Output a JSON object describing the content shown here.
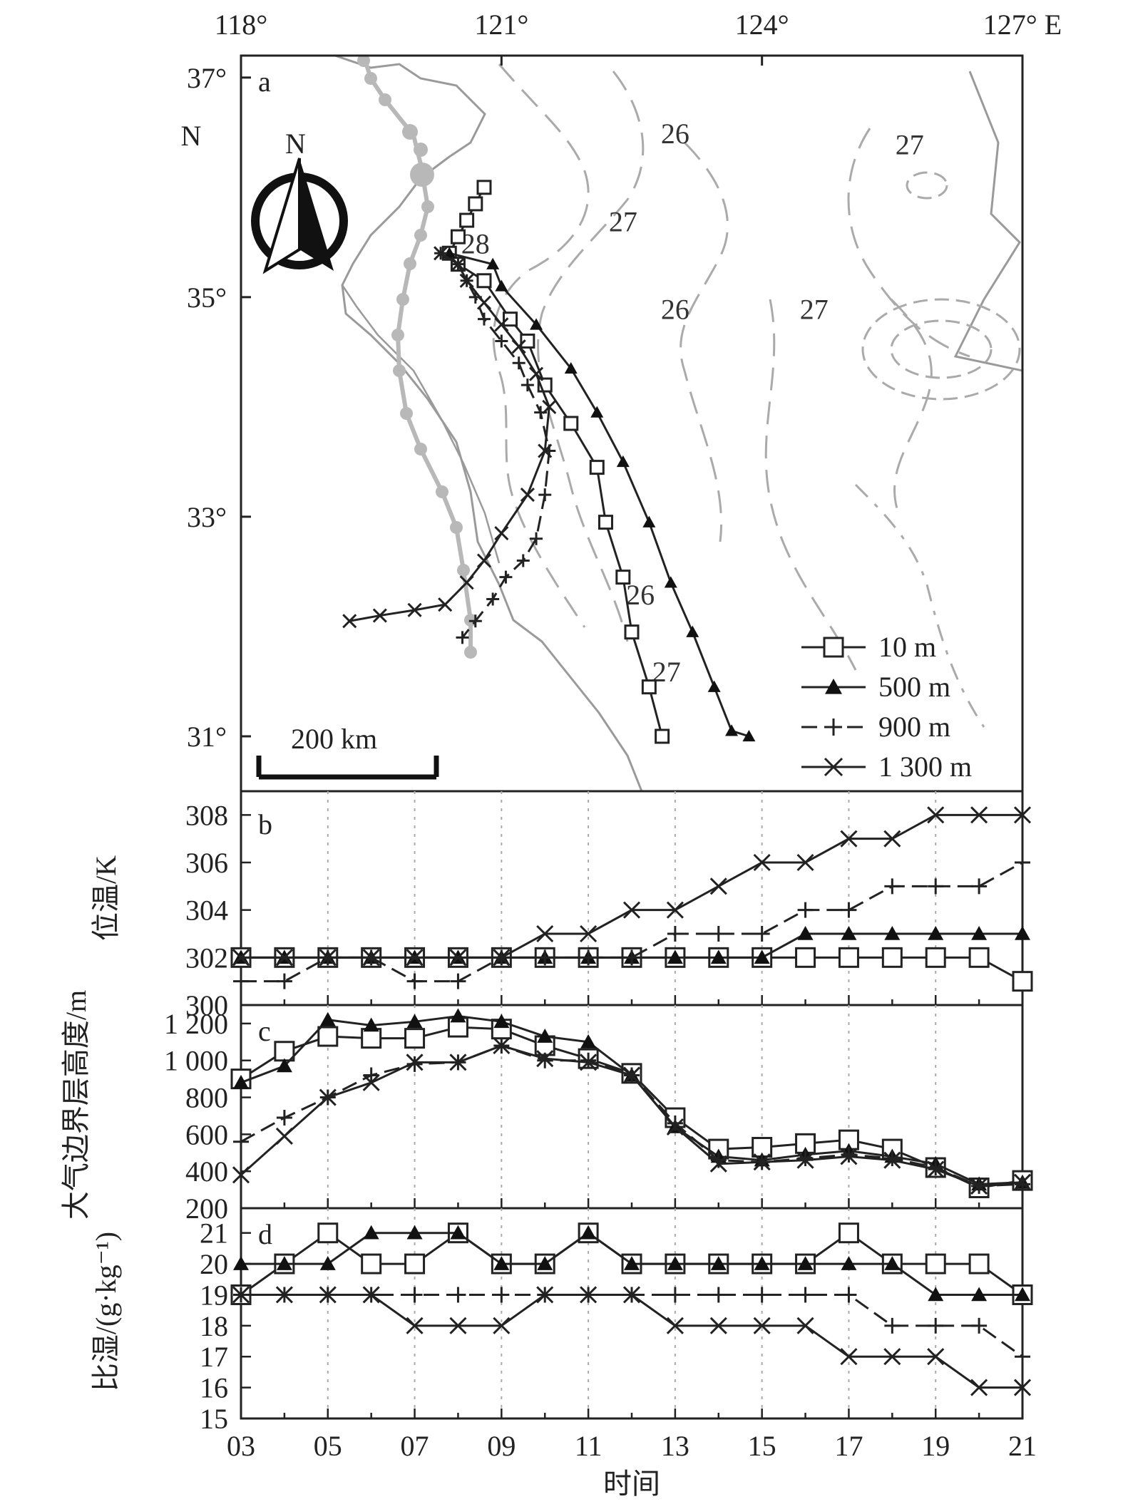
{
  "chart_data": [
    {
      "panel": "a",
      "type": "line",
      "top_axis": {
        "ticks": [
          "118°",
          "121°",
          "124°",
          "127° E"
        ],
        "values": [
          118,
          121,
          124,
          127
        ]
      },
      "left_axis": {
        "ticks": [
          "37°",
          "35°",
          "33°",
          "31°"
        ],
        "values": [
          37,
          35,
          33,
          31
        ],
        "unit": "N"
      },
      "xlim": [
        118,
        127
      ],
      "ylim": [
        30.5,
        37.2
      ],
      "north_label": "N",
      "scale_bar": "200 km",
      "isotherm_labels": [
        {
          "text": "26",
          "lon": 123.0,
          "lat": 36.4
        },
        {
          "text": "27",
          "lon": 125.7,
          "lat": 36.3
        },
        {
          "text": "27",
          "lon": 122.4,
          "lat": 35.6
        },
        {
          "text": "28",
          "lon": 120.7,
          "lat": 35.4
        },
        {
          "text": "26",
          "lon": 123.0,
          "lat": 34.8
        },
        {
          "text": "27",
          "lon": 124.6,
          "lat": 34.8
        },
        {
          "text": "26",
          "lon": 122.6,
          "lat": 32.2
        },
        {
          "text": "27",
          "lon": 122.9,
          "lat": 31.5
        }
      ],
      "series": [
        {
          "name": "10 m",
          "marker": "square",
          "lon": [
            120.8,
            120.7,
            120.6,
            120.5,
            120.4,
            120.5,
            120.8,
            121.1,
            121.3,
            121.5,
            121.8,
            122.1,
            122.2,
            122.4,
            122.5,
            122.7,
            122.85
          ],
          "lat": [
            36.0,
            35.85,
            35.7,
            35.55,
            35.4,
            35.3,
            35.15,
            34.8,
            34.6,
            34.2,
            33.85,
            33.45,
            32.95,
            32.45,
            31.95,
            31.45,
            31.0
          ]
        },
        {
          "name": "500 m",
          "marker": "triangle",
          "lon": [
            120.4,
            120.9,
            121.0,
            121.4,
            121.8,
            122.1,
            122.4,
            122.7,
            122.95,
            123.2,
            123.45,
            123.65,
            123.85
          ],
          "lat": [
            35.4,
            35.3,
            35.1,
            34.75,
            34.35,
            33.95,
            33.5,
            32.95,
            32.4,
            31.95,
            31.45,
            31.05,
            31.0
          ]
        },
        {
          "name": "900 m",
          "marker": "plus",
          "lon": [
            120.3,
            120.5,
            120.6,
            120.7,
            120.8,
            121.0,
            121.2,
            121.3,
            121.45,
            121.55,
            121.5,
            121.4,
            121.25,
            121.05,
            120.9,
            120.7,
            120.55
          ],
          "lat": [
            35.4,
            35.3,
            35.15,
            35.0,
            34.8,
            34.6,
            34.4,
            34.2,
            33.95,
            33.6,
            33.2,
            32.8,
            32.6,
            32.45,
            32.25,
            32.05,
            31.9
          ]
        },
        {
          "name": "1 300 m",
          "marker": "x",
          "lon": [
            120.3,
            120.5,
            120.6,
            120.8,
            121.0,
            121.2,
            121.4,
            121.55,
            121.5,
            121.3,
            121.0,
            120.8,
            120.6,
            120.35,
            120.0,
            119.6,
            119.25
          ],
          "lat": [
            35.4,
            35.3,
            35.15,
            34.95,
            34.75,
            34.55,
            34.3,
            34.0,
            33.6,
            33.2,
            32.85,
            32.6,
            32.4,
            32.2,
            32.15,
            32.1,
            32.05
          ]
        }
      ],
      "legend_placement": "bottom-right"
    },
    {
      "panel": "b",
      "type": "line",
      "ylabel": "位温/K",
      "ylim": [
        300,
        309
      ],
      "yticks": [
        300,
        302,
        304,
        306,
        308
      ],
      "x": [
        3,
        4,
        5,
        6,
        7,
        8,
        9,
        10,
        11,
        12,
        13,
        14,
        15,
        16,
        17,
        18,
        19,
        20,
        21
      ],
      "series": [
        {
          "name": "10 m",
          "marker": "square",
          "values": [
            302,
            302,
            302,
            302,
            302,
            302,
            302,
            302,
            302,
            302,
            302,
            302,
            302,
            302,
            302,
            302,
            302,
            302,
            301
          ]
        },
        {
          "name": "500 m",
          "marker": "triangle",
          "values": [
            302,
            302,
            302,
            302,
            302,
            302,
            302,
            302,
            302,
            302,
            302,
            302,
            302,
            303,
            303,
            303,
            303,
            303,
            303
          ]
        },
        {
          "name": "900 m",
          "marker": "plus",
          "values": [
            301,
            301,
            302,
            302,
            301,
            301,
            302,
            302,
            302,
            302,
            303,
            303,
            303,
            304,
            304,
            305,
            305,
            305,
            306
          ]
        },
        {
          "name": "1 300 m",
          "marker": "x",
          "values": [
            302,
            302,
            302,
            302,
            302,
            302,
            302,
            303,
            303,
            304,
            304,
            305,
            306,
            306,
            307,
            307,
            308,
            308,
            308
          ]
        }
      ]
    },
    {
      "panel": "c",
      "type": "line",
      "ylabel": "大气边界层高度/m",
      "ylim": [
        200,
        1300
      ],
      "yticks": [
        200,
        400,
        600,
        800,
        1000,
        1200
      ],
      "ytick_labels": [
        "200",
        "400",
        "600",
        "800",
        "1 000",
        "1 200"
      ],
      "x": [
        3,
        4,
        5,
        6,
        7,
        8,
        9,
        10,
        11,
        12,
        13,
        14,
        15,
        16,
        17,
        18,
        19,
        20,
        21
      ],
      "series": [
        {
          "name": "10 m",
          "marker": "square",
          "values": [
            900,
            1050,
            1130,
            1120,
            1120,
            1180,
            1170,
            1080,
            1010,
            930,
            690,
            520,
            530,
            550,
            570,
            520,
            420,
            310,
            350
          ]
        },
        {
          "name": "500 m",
          "marker": "triangle",
          "values": [
            880,
            970,
            1220,
            1190,
            1210,
            1240,
            1210,
            1130,
            1100,
            920,
            640,
            480,
            460,
            490,
            510,
            480,
            440,
            330,
            340
          ]
        },
        {
          "name": "900 m",
          "marker": "plus",
          "values": [
            560,
            690,
            800,
            920,
            980,
            990,
            1080,
            1000,
            1000,
            920,
            660,
            460,
            450,
            470,
            490,
            470,
            420,
            320,
            330
          ]
        },
        {
          "name": "1 300 m",
          "marker": "x",
          "values": [
            380,
            590,
            800,
            880,
            990,
            990,
            1080,
            1010,
            990,
            920,
            640,
            440,
            450,
            460,
            480,
            460,
            410,
            320,
            340
          ]
        }
      ]
    },
    {
      "panel": "d",
      "type": "line",
      "ylabel": "比湿/(g·kg⁻¹)",
      "ylim": [
        15,
        21.8
      ],
      "yticks": [
        15,
        16,
        17,
        18,
        19,
        20,
        21
      ],
      "x": [
        3,
        4,
        5,
        6,
        7,
        8,
        9,
        10,
        11,
        12,
        13,
        14,
        15,
        16,
        17,
        18,
        19,
        20,
        21
      ],
      "xticks": [
        "03",
        "05",
        "07",
        "09",
        "11",
        "13",
        "15",
        "17",
        "19",
        "21"
      ],
      "xlabel": "时间",
      "series": [
        {
          "name": "10 m",
          "marker": "square",
          "values": [
            19,
            20,
            21,
            20,
            20,
            21,
            20,
            20,
            21,
            20,
            20,
            20,
            20,
            20,
            21,
            20,
            20,
            20,
            19
          ]
        },
        {
          "name": "500 m",
          "marker": "triangle",
          "values": [
            20,
            20,
            20,
            21,
            21,
            21,
            20,
            20,
            21,
            20,
            20,
            20,
            20,
            20,
            20,
            20,
            19,
            19,
            19
          ]
        },
        {
          "name": "900 m",
          "marker": "plus",
          "values": [
            19,
            19,
            19,
            19,
            19,
            19,
            19,
            19,
            19,
            19,
            19,
            19,
            19,
            19,
            19,
            18,
            18,
            18,
            17
          ]
        },
        {
          "name": "1 300 m",
          "marker": "x",
          "values": [
            19,
            19,
            19,
            19,
            18,
            18,
            18,
            19,
            19,
            19,
            18,
            18,
            18,
            18,
            17,
            17,
            17,
            16,
            16
          ]
        }
      ]
    }
  ]
}
